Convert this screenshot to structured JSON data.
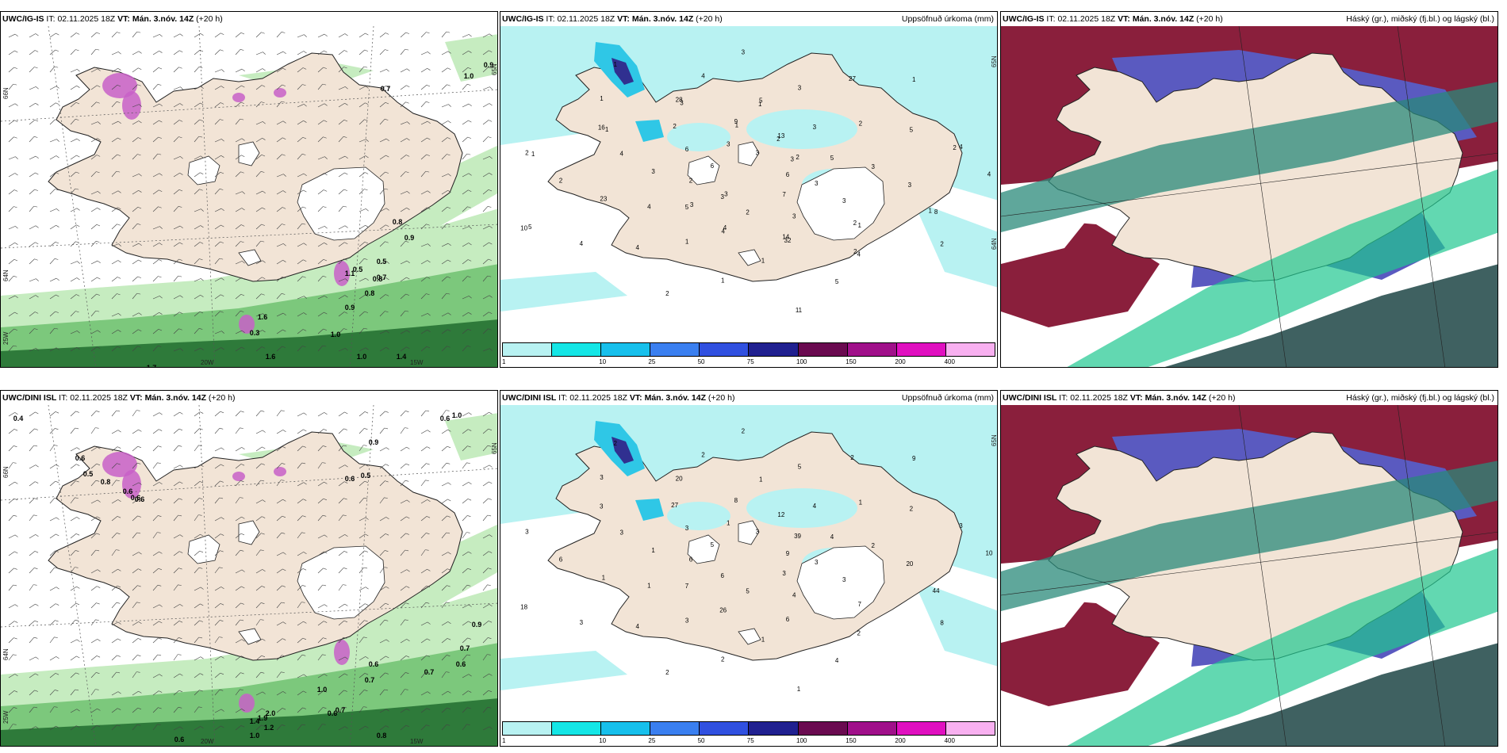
{
  "colors": {
    "land": "#f2e4d6",
    "precip_light": "#b8f2f2",
    "precip_mid": "#2fc7e6",
    "precip_dark": "#303090",
    "purple": "#c860c8",
    "green_light": "#c6ecc0",
    "green_mid": "#7cc87c",
    "green_dark": "#2e7a3a",
    "cloud_red": "#8a1f3c",
    "cloud_blue": "#5a5ac0",
    "cloud_teal": "#2a8a7a",
    "cloud_green": "#20c890",
    "cloud_dark": "#2a5050"
  },
  "rows": [
    {
      "p1": {
        "model": "UWC/IG-IS",
        "it_label": "IT:",
        "it_value": "02.11.2025 18Z",
        "vt_label": "VT:",
        "vt_value": "Mán. 3.nóv. 14Z",
        "lead": "(+20 h)",
        "lat_labels": [
          "66N",
          "64N",
          "25W"
        ],
        "lon_labels": [
          "20W",
          "15W"
        ],
        "right_labels": [
          "65N"
        ],
        "values": [
          "0.9",
          "1.0",
          "0.7",
          "0.8",
          "0.9",
          "0.5",
          "0.8",
          "0.5",
          "0.8",
          "0.9",
          "0.7",
          "1.0",
          "1.0",
          "1.4",
          "1.7",
          "1.6",
          "1.6",
          "0.3",
          "1.1"
        ]
      },
      "p2": {
        "model": "UWC/IG-IS",
        "it_label": "IT:",
        "it_value": "02.11.2025 18Z",
        "vt_label": "VT:",
        "vt_value": "Mán. 3.nóv. 14Z",
        "lead": "(+20 h)",
        "title": "Uppsöfnuð úrkoma (mm)",
        "right_labels": [
          "65N",
          "64N"
        ],
        "values": [
          "6",
          "5",
          "5",
          "4",
          "2",
          "2",
          "4",
          "28",
          "8",
          "10",
          "13",
          "32",
          "16",
          "4",
          "3",
          "9",
          "1",
          "2",
          "1",
          "2",
          "2",
          "3",
          "4",
          "3",
          "3",
          "4",
          "5",
          "2",
          "3",
          "3",
          "23",
          "27",
          "11",
          "6",
          "3",
          "4",
          "3",
          "7",
          "3",
          "2",
          "1",
          "1",
          "3",
          "4",
          "3",
          "5",
          "6",
          "5",
          "1",
          "4",
          "2",
          "2",
          "3",
          "1",
          "1",
          "4",
          "3",
          "1",
          "2",
          "1",
          "3",
          "4",
          "3",
          "1",
          "5",
          "2",
          "14",
          "1",
          "2",
          "3",
          "1",
          "2"
        ]
      },
      "p3": {
        "model": "UWC/IG-IS",
        "it_label": "IT:",
        "it_value": "02.11.2025 18Z",
        "vt_label": "VT:",
        "vt_value": "Mán. 3.nóv. 14Z",
        "lead": "(+20 h)",
        "title": "Háský (gr.), miðský (fj.bl.) og lágský (bl.)"
      }
    },
    {
      "p1": {
        "model": "UWC/DINI ISL",
        "it_label": "IT:",
        "it_value": "02.11.2025 18Z",
        "vt_label": "VT:",
        "vt_value": "Mán. 3.nóv. 14Z",
        "lead": "(+20 h)",
        "lat_labels": [
          "66N",
          "64N",
          "25W"
        ],
        "lon_labels": [
          "20W",
          "15W"
        ],
        "right_labels": [
          "65N"
        ],
        "values": [
          "0.4",
          "0.6",
          "1.0",
          "0.9",
          "0.5",
          "0.6",
          "0.6",
          "0.5",
          "0.8",
          "0.6",
          "0.6",
          "0.6",
          "0.9",
          "0.7",
          "0.6",
          "0.7",
          "0.6",
          "0.7",
          "0.7",
          "0.6",
          "1.0",
          "1.4",
          "2.0",
          "1.9",
          "1.2",
          "1.0",
          "0.6",
          "0.8"
        ]
      },
      "p2": {
        "model": "UWC/DINI ISL",
        "it_label": "IT:",
        "it_value": "02.11.2025 18Z",
        "vt_label": "VT:",
        "vt_value": "Mán. 3.nóv. 14Z",
        "lead": "(+20 h)",
        "title": "Uppsöfnuð úrkoma (mm)",
        "right_labels": [
          "65N"
        ],
        "values": [
          "9",
          "7",
          "1",
          "2",
          "3",
          "39",
          "26",
          "20",
          "44",
          "18",
          "12",
          "6",
          "3",
          "3",
          "6",
          "8",
          "7",
          "6",
          "9",
          "5",
          "27",
          "20",
          "3",
          "3",
          "4",
          "3",
          "2",
          "2",
          "1",
          "3",
          "1",
          "2",
          "1",
          "3",
          "2",
          "4",
          "2",
          "3",
          "1",
          "1",
          "2",
          "2",
          "3",
          "1",
          "5",
          "4",
          "5",
          "4",
          "3",
          "2",
          "8",
          "6",
          "4",
          "1",
          "3",
          "10"
        ]
      },
      "p3": {
        "model": "UWC/DINI ISL",
        "it_label": "IT:",
        "it_value": "02.11.2025 18Z",
        "vt_label": "VT:",
        "vt_value": "Mán. 3.nóv. 14Z",
        "lead": "(+20 h)",
        "title": "Háský (gr.), miðský (fj.bl.) og lágský (bl.)"
      }
    }
  ],
  "precip_scale": {
    "labels": [
      "1",
      "10",
      "25",
      "50",
      "75",
      "100",
      "150",
      "200",
      "400"
    ],
    "colors": [
      "#b8f2f2",
      "#14e6e6",
      "#17c0ec",
      "#3a7ff0",
      "#3050e0",
      "#202090",
      "#6a0a50",
      "#a0108a",
      "#e010c0",
      "#f8b0f0"
    ]
  }
}
